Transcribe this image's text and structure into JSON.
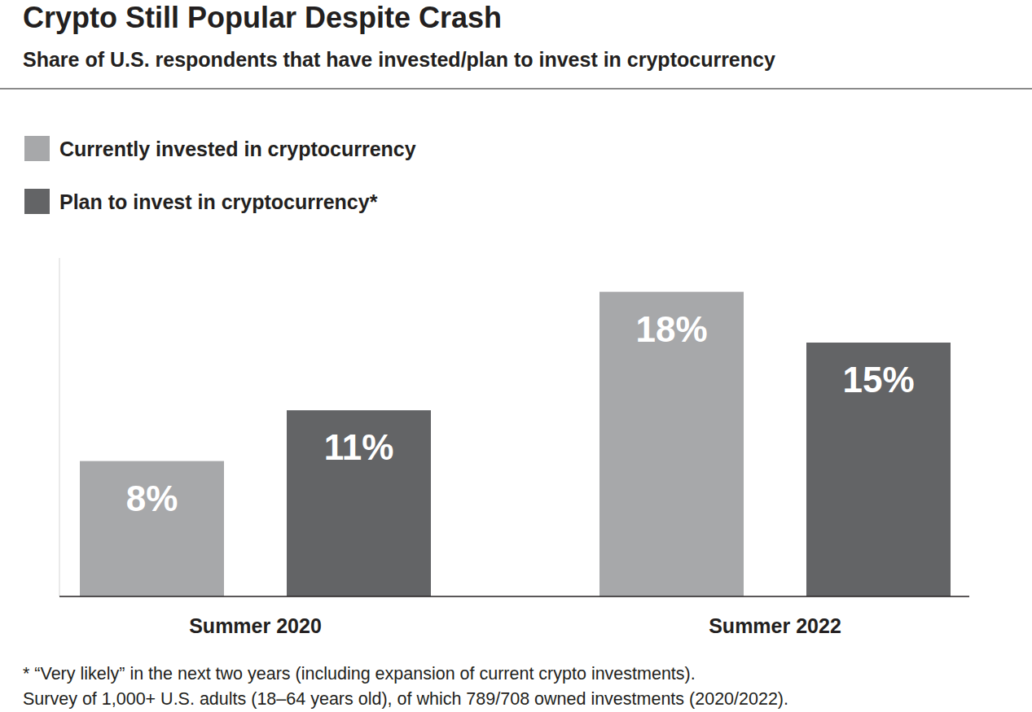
{
  "chart_data": {
    "type": "bar",
    "title": "Crypto Still Popular Despite Crash",
    "subtitle": "Share of U.S. respondents that have invested/plan to invest in cryptocurrency",
    "categories": [
      "Summer 2020",
      "Summer 2022"
    ],
    "series": [
      {
        "name": "Currently invested in cryptocurrency",
        "color": "#a7a8aa",
        "values": [
          8,
          18
        ],
        "value_labels": [
          "8%",
          "18%"
        ]
      },
      {
        "name": "Plan to invest in cryptocurrency*",
        "color": "#636466",
        "values": [
          11,
          15
        ],
        "value_labels": [
          "11%",
          "15%"
        ]
      }
    ],
    "ylim": [
      0,
      20
    ],
    "grid": false,
    "legend": "top-left",
    "data_labels": true,
    "tick_labels": "x",
    "annotations": [
      "* “Very likely” in the next two years (including expansion of current crypto investments).",
      "Survey of 1,000+ U.S. adults (18–64 years old), of which 789/708 owned investments (2020/2022)."
    ]
  }
}
